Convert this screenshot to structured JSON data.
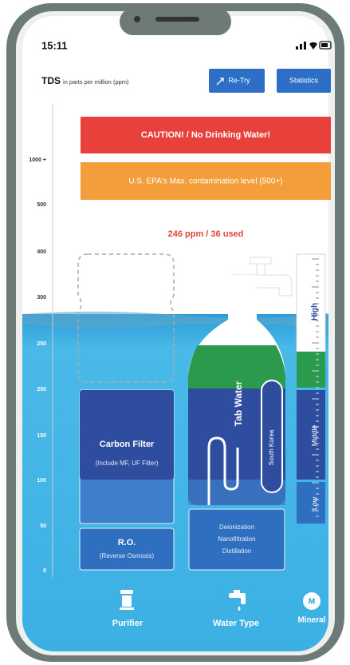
{
  "status_bar": {
    "time": "15:11"
  },
  "header": {
    "title": "TDS",
    "subtitle": "in parts per million (ppm)",
    "buttons": [
      "Re-Try",
      "Statistics"
    ]
  },
  "alerts": [
    "CAUTION! / No Drinking Water!",
    "U.S. EPA's Max. contamination level (500+)"
  ],
  "axis_labels": [
    "1000 +",
    "500",
    "400",
    "300",
    "250",
    "200",
    "150",
    "100",
    "50",
    "0"
  ],
  "reading": "246 ppm / 36 used",
  "filters": [
    {
      "title": "Carbon Filter",
      "subtitle": "(Include MF, UF Filter)"
    },
    {
      "title": "R.O.",
      "subtitle": "(Reverse Osmosis)"
    }
  ],
  "tap_water": {
    "label": "Tab Water",
    "region": "South Korea",
    "methods": [
      "Deionization",
      "Nanofiltration",
      "Distillation"
    ]
  },
  "ruler": [
    "High",
    "Middle",
    "Low"
  ],
  "nav": [
    "Purifier",
    "Water Type",
    "Mineral"
  ],
  "mineral_icon": "M"
}
